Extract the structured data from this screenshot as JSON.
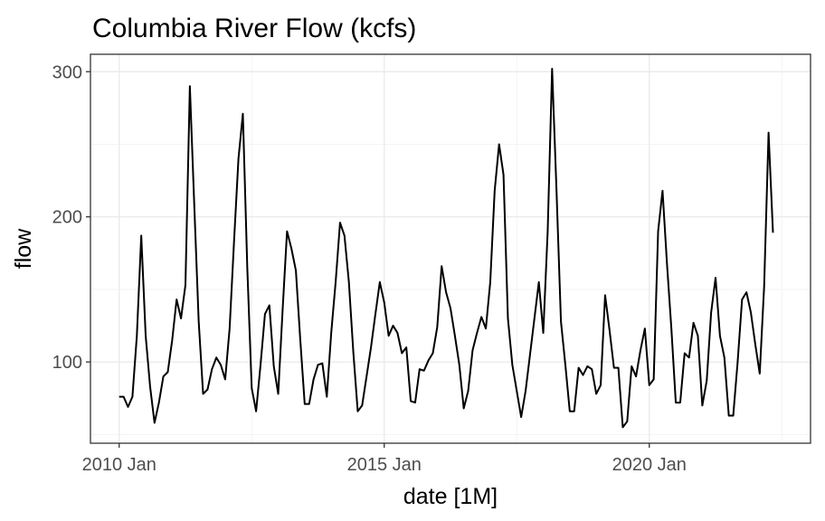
{
  "chart_data": {
    "type": "line",
    "title": "Columbia River Flow (kcfs)",
    "xlabel": "date [1M]",
    "ylabel": "flow",
    "x_start": "2010 Jan",
    "x_interval": "1 month",
    "x_ticks": [
      {
        "label": "2010 Jan",
        "month_index": 0
      },
      {
        "label": "2015 Jan",
        "month_index": 60
      },
      {
        "label": "2020 Jan",
        "month_index": 120
      }
    ],
    "xlim_month_index": [
      -6.5,
      156.5
    ],
    "y_ticks": [
      100,
      200,
      300
    ],
    "ylim": [
      44,
      312
    ],
    "grid": true,
    "series": [
      {
        "values": [
          76,
          76,
          69,
          76,
          118,
          187,
          118,
          83,
          58,
          72,
          90,
          93,
          115,
          143,
          130,
          153,
          290,
          208,
          128,
          78,
          81,
          95,
          103,
          98,
          88,
          123,
          183,
          240,
          271,
          165,
          82,
          66,
          98,
          133,
          139,
          97,
          78,
          136,
          190,
          178,
          163,
          115,
          71,
          71,
          88,
          98,
          99,
          76,
          120,
          155,
          196,
          187,
          155,
          107,
          66,
          70,
          90,
          110,
          133,
          155,
          141,
          118,
          125,
          120,
          106,
          110,
          73,
          72,
          95,
          94,
          101,
          106,
          124,
          166,
          148,
          137,
          118,
          98,
          68,
          80,
          108,
          120,
          131,
          123,
          155,
          218,
          250,
          229,
          130,
          98,
          80,
          62,
          80,
          105,
          130,
          155,
          120,
          190,
          302,
          218,
          128,
          98,
          66,
          66,
          96,
          91,
          97,
          95,
          78,
          84,
          146,
          122,
          96,
          96,
          55,
          59,
          97,
          90,
          108,
          123,
          84,
          88,
          190,
          218,
          168,
          123,
          72,
          72,
          106,
          103,
          127,
          118,
          70,
          87,
          134,
          158,
          118,
          103,
          63,
          63,
          100,
          143,
          148,
          134,
          112,
          92,
          152,
          258,
          189
        ]
      }
    ]
  }
}
